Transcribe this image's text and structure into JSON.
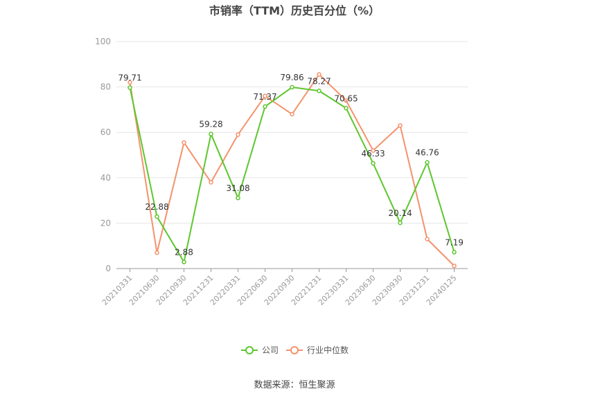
{
  "chart_data": {
    "type": "line",
    "title": "市销率（TTM）历史百分位（%）",
    "categories": [
      "20210331",
      "20210630",
      "20210930",
      "20211231",
      "20220331",
      "20220630",
      "20220930",
      "20221231",
      "20230331",
      "20230630",
      "20230930",
      "20231231",
      "20240125"
    ],
    "ylim": [
      0,
      100
    ],
    "yticks": [
      0,
      20,
      40,
      60,
      80,
      100
    ],
    "grid": true,
    "legend_position": "bottom",
    "series": [
      {
        "name": "公司",
        "color": "#5cc72c",
        "values": [
          79.71,
          22.88,
          2.88,
          59.28,
          31.08,
          71.37,
          79.86,
          78.27,
          70.65,
          46.33,
          20.14,
          46.76,
          7.19
        ],
        "labels": [
          "79.71",
          "22.88",
          "2.88",
          "59.28",
          "31.08",
          "71.37",
          "79.86",
          "78.27",
          "70.65",
          "46.33",
          "20.14",
          "46.76",
          "7.19"
        ]
      },
      {
        "name": "行业中位数",
        "color": "#f4926b",
        "values": [
          82,
          7,
          55.5,
          38,
          59,
          76,
          68,
          85.5,
          74,
          52,
          63,
          13,
          1.2
        ]
      }
    ]
  },
  "footer": {
    "source": "数据来源：恒生聚源"
  }
}
